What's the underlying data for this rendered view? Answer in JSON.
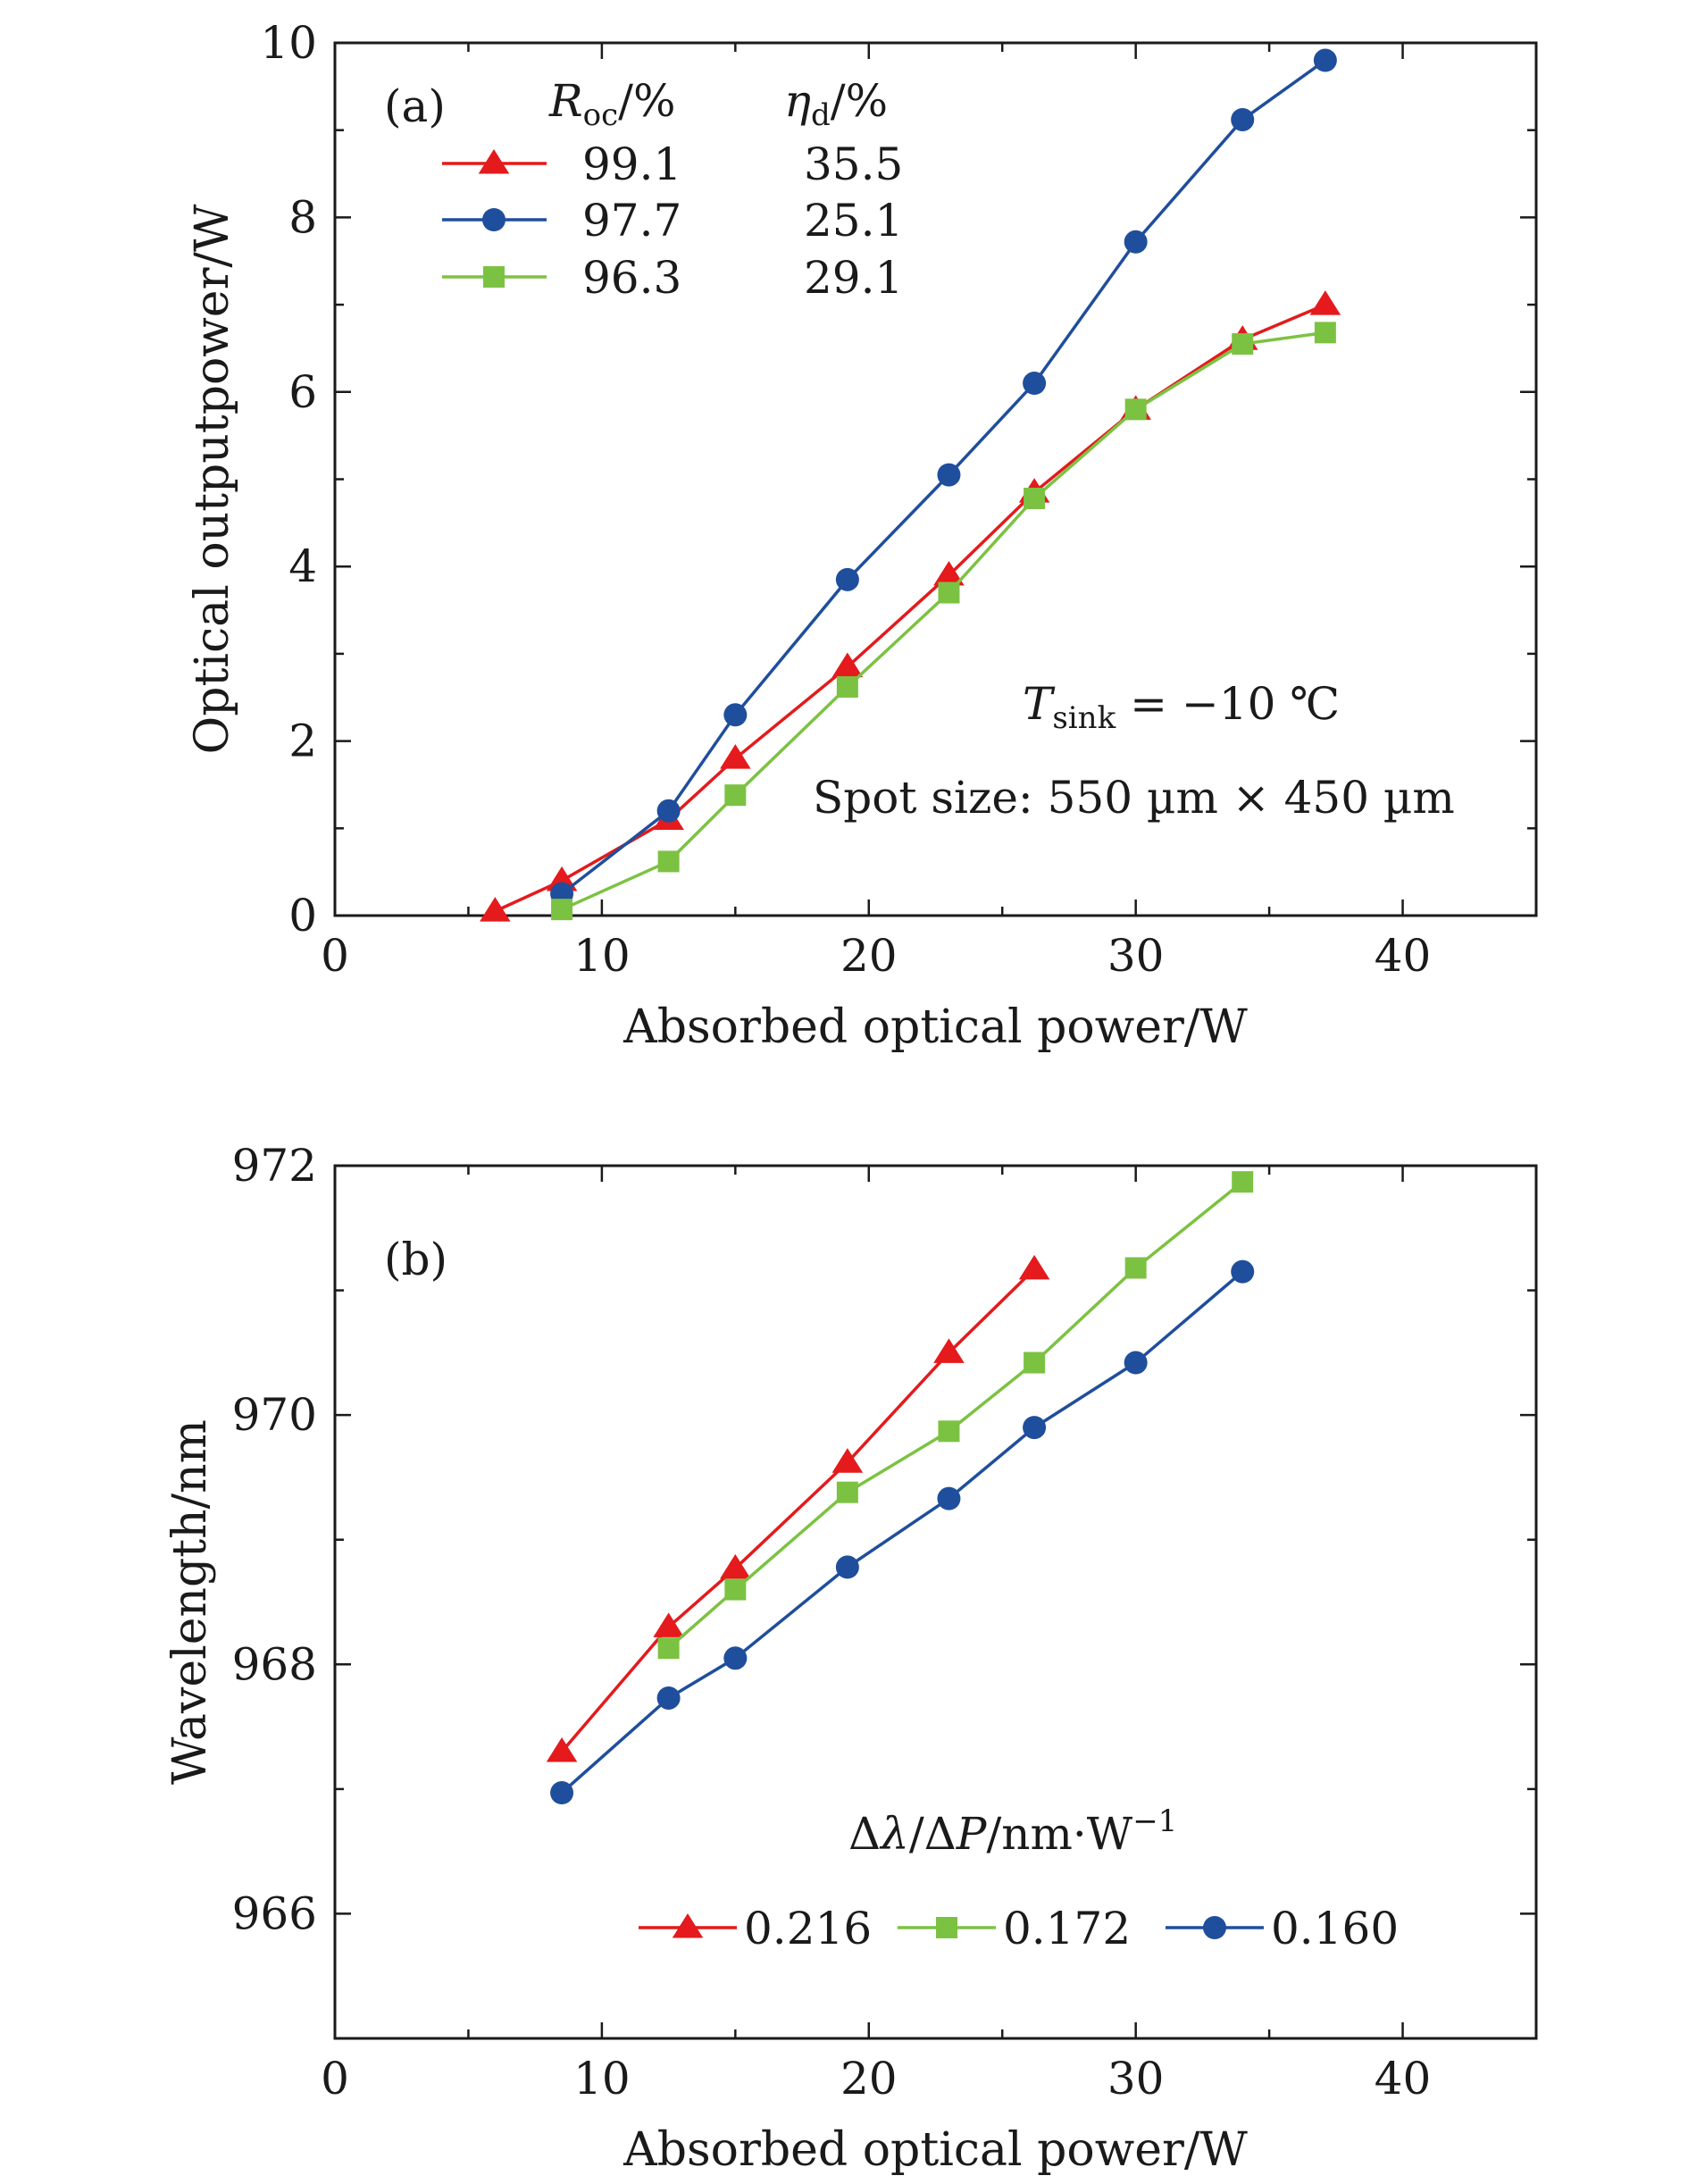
{
  "colors": {
    "red": "#e41a1c",
    "blue": "#1f4e9c",
    "green": "#7cc242",
    "axis": "#1a1a1a"
  },
  "chart_data": [
    {
      "type": "line",
      "panel_label": "(a)",
      "xlabel": "Absorbed optical power/W",
      "ylabel": "Optical outputpower/W",
      "xlim": [
        0,
        45
      ],
      "ylim": [
        0,
        10
      ],
      "xticks": [
        0,
        10,
        20,
        30,
        40
      ],
      "yticks": [
        0,
        2,
        4,
        6,
        8,
        10
      ],
      "grid": false,
      "legend_position": "top-left",
      "legend_header": {
        "col1": "R_oc/%",
        "col2": "η_d/%"
      },
      "annotations": [
        "T_sink = −10 ℃",
        "Spot size: 550 µm × 450 µm"
      ],
      "series": [
        {
          "name": "99.1",
          "extra": "35.5",
          "marker": "triangle",
          "color": "#e41a1c",
          "x": [
            6,
            8.5,
            12.5,
            15,
            19.2,
            23,
            26.2,
            30,
            34,
            37.1
          ],
          "y": [
            0.05,
            0.4,
            1.1,
            1.8,
            2.85,
            3.9,
            4.85,
            5.8,
            6.6,
            7.0
          ]
        },
        {
          "name": "97.7",
          "extra": "25.1",
          "marker": "circle",
          "color": "#1f4e9c",
          "x": [
            8.5,
            12.5,
            15,
            19.2,
            23,
            26.2,
            30,
            34,
            37.1
          ],
          "y": [
            0.25,
            1.2,
            2.3,
            3.85,
            5.05,
            6.1,
            7.72,
            9.12,
            9.8
          ]
        },
        {
          "name": "96.3",
          "extra": "29.1",
          "marker": "square",
          "color": "#7cc242",
          "x": [
            8.5,
            12.5,
            15,
            19.2,
            23,
            26.2,
            30,
            34,
            37.1
          ],
          "y": [
            0.07,
            0.62,
            1.38,
            2.62,
            3.7,
            4.78,
            5.8,
            6.55,
            6.68
          ]
        }
      ]
    },
    {
      "type": "line",
      "panel_label": "(b)",
      "xlabel": "Absorbed optical power/W",
      "ylabel": "Wavelength/nm",
      "xlim": [
        0,
        45
      ],
      "ylim": [
        965,
        972
      ],
      "xticks": [
        0,
        10,
        20,
        30,
        40
      ],
      "yticks": [
        966,
        968,
        970,
        972
      ],
      "grid": false,
      "legend_position": "bottom-right",
      "legend_title": "Δλ/ΔP/nm·W⁻¹",
      "series": [
        {
          "name": "0.216",
          "marker": "triangle",
          "color": "#e41a1c",
          "x": [
            8.5,
            12.5,
            15,
            19.2,
            23,
            26.2
          ],
          "y": [
            967.3,
            968.3,
            968.77,
            969.62,
            970.5,
            971.17
          ]
        },
        {
          "name": "0.172",
          "marker": "square",
          "color": "#7cc242",
          "x": [
            12.5,
            15,
            19.2,
            23,
            26.2,
            30,
            34
          ],
          "y": [
            968.13,
            968.6,
            969.38,
            969.87,
            970.42,
            971.18,
            971.87
          ]
        },
        {
          "name": "0.160",
          "marker": "circle",
          "color": "#1f4e9c",
          "x": [
            8.5,
            12.5,
            15,
            19.2,
            23,
            26.2,
            30,
            34
          ],
          "y": [
            966.97,
            967.73,
            968.05,
            968.78,
            969.33,
            969.9,
            970.42,
            971.15
          ]
        }
      ]
    }
  ]
}
